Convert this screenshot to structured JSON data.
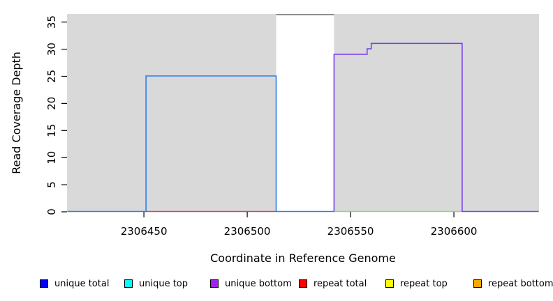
{
  "chart_data": {
    "type": "line",
    "subtype": "step-coverage",
    "title": "",
    "xlabel": "Coordinate in Reference Genome",
    "ylabel": "Read Coverage Depth",
    "x_ticks": [
      2306450,
      2306500,
      2306550,
      2306600
    ],
    "y_ticks": [
      0,
      5,
      10,
      15,
      20,
      25,
      30,
      35
    ],
    "xlim": [
      2306412.8,
      2306641.2
    ],
    "ylim": [
      0,
      36.5
    ],
    "grid": false,
    "plot_background": "#d9d9d9",
    "masked_region": {
      "x_start": 2306514,
      "x_end": 2306542,
      "fill": "#ffffff",
      "top_line_color": "#8c8c8c"
    },
    "series": [
      {
        "name": "repeat total baseline",
        "color": "#e03a5c",
        "points": [
          [
            2306451,
            0
          ],
          [
            2306514,
            0
          ]
        ]
      },
      {
        "name": "top strand baseline",
        "color": "#85d985",
        "points": [
          [
            2306542,
            0
          ],
          [
            2306604,
            0
          ]
        ]
      },
      {
        "name": "unique total",
        "color": "#2b7cf2",
        "points": [
          [
            2306413,
            0
          ],
          [
            2306451,
            0
          ],
          [
            2306451,
            25
          ],
          [
            2306514,
            25
          ],
          [
            2306514,
            0
          ],
          [
            2306542,
            0
          ]
        ]
      },
      {
        "name": "unique bottom",
        "color": "#7a3ff0",
        "points": [
          [
            2306542,
            0
          ],
          [
            2306542,
            29
          ],
          [
            2306558,
            29
          ],
          [
            2306558,
            30
          ],
          [
            2306560,
            30
          ],
          [
            2306560,
            31
          ],
          [
            2306604,
            31
          ],
          [
            2306604,
            0
          ],
          [
            2306641,
            0
          ]
        ]
      }
    ],
    "legend_position": "bottom"
  },
  "legend": {
    "items": [
      {
        "label": "unique total",
        "color": "#0000ff"
      },
      {
        "label": "unique top",
        "color": "#00ffff"
      },
      {
        "label": "unique bottom",
        "color": "#a020f0"
      },
      {
        "label": "repeat total",
        "color": "#ff0000"
      },
      {
        "label": "repeat top",
        "color": "#ffff00"
      },
      {
        "label": "repeat bottom",
        "color": "#ffa500"
      }
    ]
  }
}
